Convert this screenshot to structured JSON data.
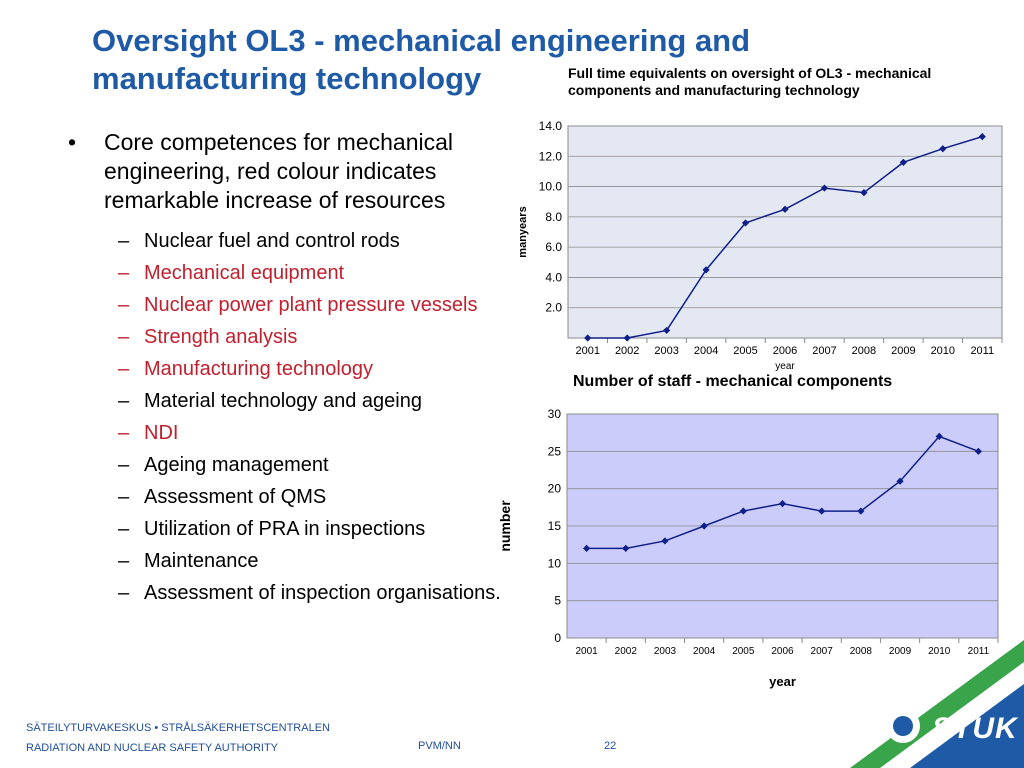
{
  "slide": {
    "title": "Oversight OL3 - mechanical engineering and manufacturing technology",
    "bullet": "Core competences for mechanical engineering, red colour indicates remarkable increase of resources",
    "items": [
      {
        "text": "Nuclear fuel and control rods",
        "highlight": false
      },
      {
        "text": "Mechanical equipment",
        "highlight": true
      },
      {
        "text": "Nuclear power plant pressure vessels",
        "highlight": true
      },
      {
        "text": "Strength analysis",
        "highlight": true
      },
      {
        "text": "Manufacturing technology",
        "highlight": true
      },
      {
        "text": "Material technology and ageing",
        "highlight": false
      },
      {
        "text": "NDI",
        "highlight": true
      },
      {
        "text": "Ageing management",
        "highlight": false
      },
      {
        "text": "Assessment of QMS",
        "highlight": false
      },
      {
        "text": "Utilization of PRA in inspections",
        "highlight": false
      },
      {
        "text": "Maintenance",
        "highlight": false
      },
      {
        "text": "Assessment of inspection organisations.",
        "highlight": false
      }
    ],
    "colors": {
      "title": "#1f5aa6",
      "highlight": "#c0202e",
      "series": "#10208a"
    }
  },
  "chart_data": [
    {
      "type": "line",
      "title": "Full time equivalents on oversight of OL3 - mechanical components and manufacturing technology",
      "xlabel": "year",
      "ylabel": "manyears",
      "categories": [
        "2001",
        "2002",
        "2003",
        "2004",
        "2005",
        "2006",
        "2007",
        "2008",
        "2009",
        "2010",
        "2011"
      ],
      "values": [
        0.0,
        0.0,
        0.5,
        4.5,
        7.6,
        8.5,
        9.9,
        9.6,
        11.6,
        12.5,
        13.3
      ],
      "ylim": [
        0,
        14
      ],
      "yticks": [
        "2.0",
        "4.0",
        "6.0",
        "8.0",
        "10.0",
        "12.0",
        "14.0"
      ],
      "grid": true,
      "background": "#e4e8f2"
    },
    {
      "type": "line",
      "title": "Number of staff - mechanical components",
      "xlabel": "year",
      "ylabel": "number",
      "categories": [
        "2001",
        "2002",
        "2003",
        "2004",
        "2005",
        "2006",
        "2007",
        "2008",
        "2009",
        "2010",
        "2011"
      ],
      "values": [
        12,
        12,
        13,
        15,
        17,
        18,
        17,
        17,
        21,
        27,
        25
      ],
      "ylim": [
        0,
        30
      ],
      "yticks": [
        "0",
        "5",
        "10",
        "15",
        "20",
        "25",
        "30"
      ],
      "grid": true,
      "background": "#ccccfa"
    }
  ],
  "footer": {
    "org_line1": "SÄTEILYTURVAKESKUS • STRÅLSÄKERHETSCENTRALEN",
    "org_line2": "RADIATION AND NUCLEAR SAFETY AUTHORITY",
    "ref": "PVM/NN",
    "page": "22",
    "logo": "STUK"
  }
}
